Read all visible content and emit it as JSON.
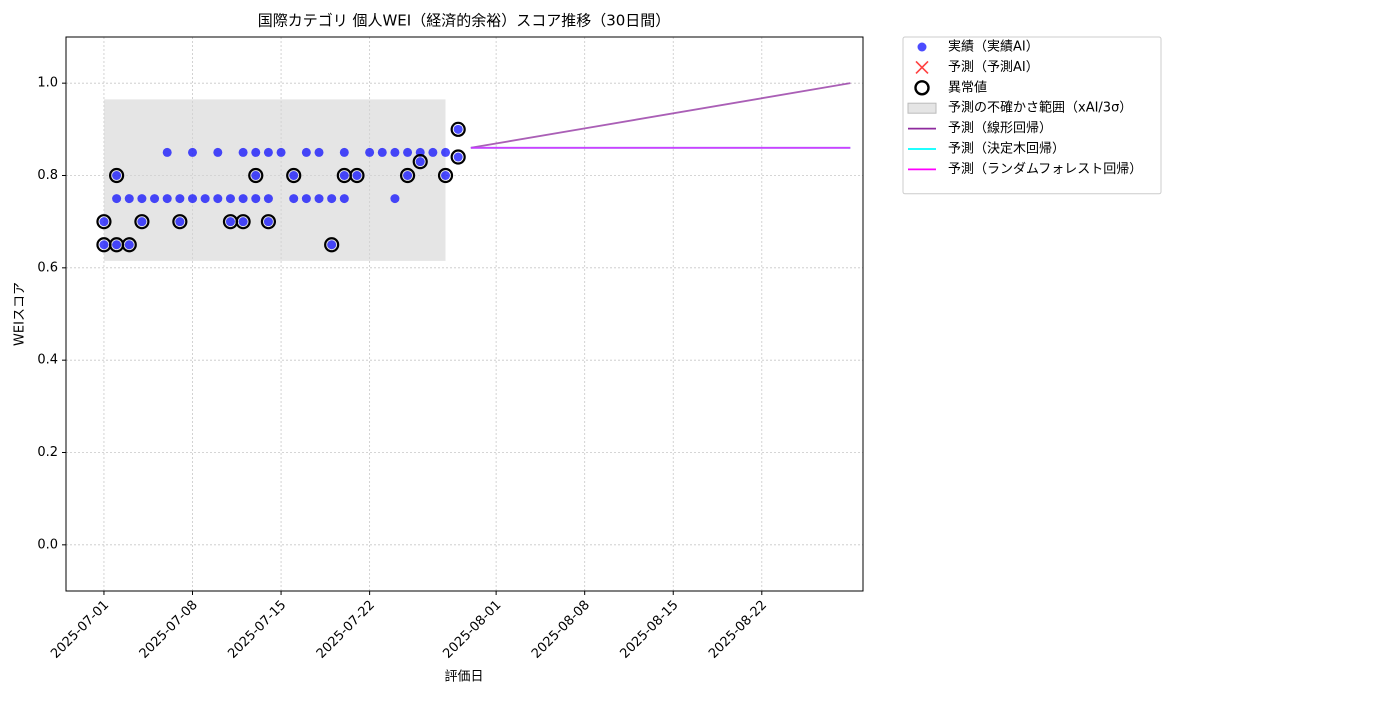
{
  "chart_data": {
    "type": "scatter",
    "title": "国際カテゴリ 個人WEI（経済的余裕）スコア推移（30日間）",
    "x_label": "評価日",
    "y_label": "WEIスコア",
    "xlim": [
      "2025-06-28",
      "2025-08-30"
    ],
    "ylim": [
      -0.1,
      1.1
    ],
    "xticks": [
      "2025-07-01",
      "2025-07-08",
      "2025-07-15",
      "2025-07-22",
      "2025-08-01",
      "2025-08-08",
      "2025-08-15",
      "2025-08-22"
    ],
    "yticks": [
      {
        "value": 0,
        "label": "0.0"
      },
      0.2,
      0.4,
      0.6,
      0.8,
      {
        "value": 1,
        "label": "1.0"
      }
    ],
    "grid": true,
    "legend": "outside-right",
    "series": [
      {
        "name": "実績（実績AI）",
        "color": "#0000ff",
        "kind": "point",
        "x": [
          "2025-07-01",
          "2025-07-01",
          "2025-07-02",
          "2025-07-02",
          "2025-07-02",
          "2025-07-03",
          "2025-07-03",
          "2025-07-04",
          "2025-07-04",
          "2025-07-05",
          "2025-07-06",
          "2025-07-06",
          "2025-07-07",
          "2025-07-07",
          "2025-07-08",
          "2025-07-08",
          "2025-07-09",
          "2025-07-10",
          "2025-07-10",
          "2025-07-11",
          "2025-07-11",
          "2025-07-12",
          "2025-07-12",
          "2025-07-12",
          "2025-07-13",
          "2025-07-13",
          "2025-07-13",
          "2025-07-14",
          "2025-07-14",
          "2025-07-14",
          "2025-07-15",
          "2025-07-16",
          "2025-07-16",
          "2025-07-17",
          "2025-07-17",
          "2025-07-18",
          "2025-07-18",
          "2025-07-19",
          "2025-07-19",
          "2025-07-20",
          "2025-07-20",
          "2025-07-20",
          "2025-07-21",
          "2025-07-22",
          "2025-07-23",
          "2025-07-24",
          "2025-07-24",
          "2025-07-25",
          "2025-07-25",
          "2025-07-26",
          "2025-07-26",
          "2025-07-27",
          "2025-07-28",
          "2025-07-28",
          "2025-07-29",
          "2025-07-29"
        ],
        "values": [
          0.7,
          0.65,
          0.65,
          0.8,
          0.75,
          0.65,
          0.75,
          0.75,
          0.7,
          0.75,
          0.75,
          0.85,
          0.75,
          0.7,
          0.75,
          0.85,
          0.75,
          0.85,
          0.75,
          0.75,
          0.7,
          0.7,
          0.75,
          0.85,
          0.75,
          0.85,
          0.8,
          0.85,
          0.75,
          0.7,
          0.85,
          0.8,
          0.75,
          0.85,
          0.75,
          0.85,
          0.75,
          0.75,
          0.65,
          0.85,
          0.75,
          0.8,
          0.8,
          0.85,
          0.85,
          0.85,
          0.75,
          0.85,
          0.8,
          0.83,
          0.85,
          0.85,
          0.85,
          0.8,
          0.9,
          0.84
        ]
      },
      {
        "name": "予測（予測AI）",
        "color": "#ff0000",
        "kind": "cross",
        "x": [],
        "values": []
      },
      {
        "name": "異常値",
        "color": "#000000",
        "kind": "ring",
        "x": [
          "2025-07-01",
          "2025-07-01",
          "2025-07-02",
          "2025-07-02",
          "2025-07-03",
          "2025-07-04",
          "2025-07-07",
          "2025-07-11",
          "2025-07-12",
          "2025-07-13",
          "2025-07-14",
          "2025-07-16",
          "2025-07-19",
          "2025-07-20",
          "2025-07-21",
          "2025-07-25",
          "2025-07-26",
          "2025-07-28",
          "2025-07-29",
          "2025-07-29"
        ],
        "values": [
          0.7,
          0.65,
          0.65,
          0.8,
          0.65,
          0.7,
          0.7,
          0.7,
          0.7,
          0.8,
          0.7,
          0.8,
          0.65,
          0.8,
          0.8,
          0.8,
          0.83,
          0.8,
          0.9,
          0.84
        ]
      },
      {
        "name": "予測の不確かさ範囲（xAI/3σ）",
        "color": "#d3d3d3",
        "kind": "band",
        "x": [
          "2025-07-01",
          "2025-07-28"
        ],
        "lower": [
          0.615,
          0.615
        ],
        "upper": [
          0.965,
          0.965
        ]
      },
      {
        "name": "予測（線形回帰）",
        "color": "#8e2a9e",
        "kind": "line",
        "x": [
          "2025-07-30",
          "2025-08-29"
        ],
        "values": [
          0.86,
          1.0
        ]
      },
      {
        "name": "予測（決定木回帰）",
        "color": "#00ffff",
        "kind": "line",
        "x": [
          "2025-07-30",
          "2025-08-29"
        ],
        "values": [
          0.86,
          0.86
        ]
      },
      {
        "name": "予測（ランダムフォレスト回帰）",
        "color": "#ff00ff",
        "kind": "line",
        "x": [
          "2025-07-30",
          "2025-08-29"
        ],
        "values": [
          0.86,
          0.86
        ]
      }
    ]
  }
}
